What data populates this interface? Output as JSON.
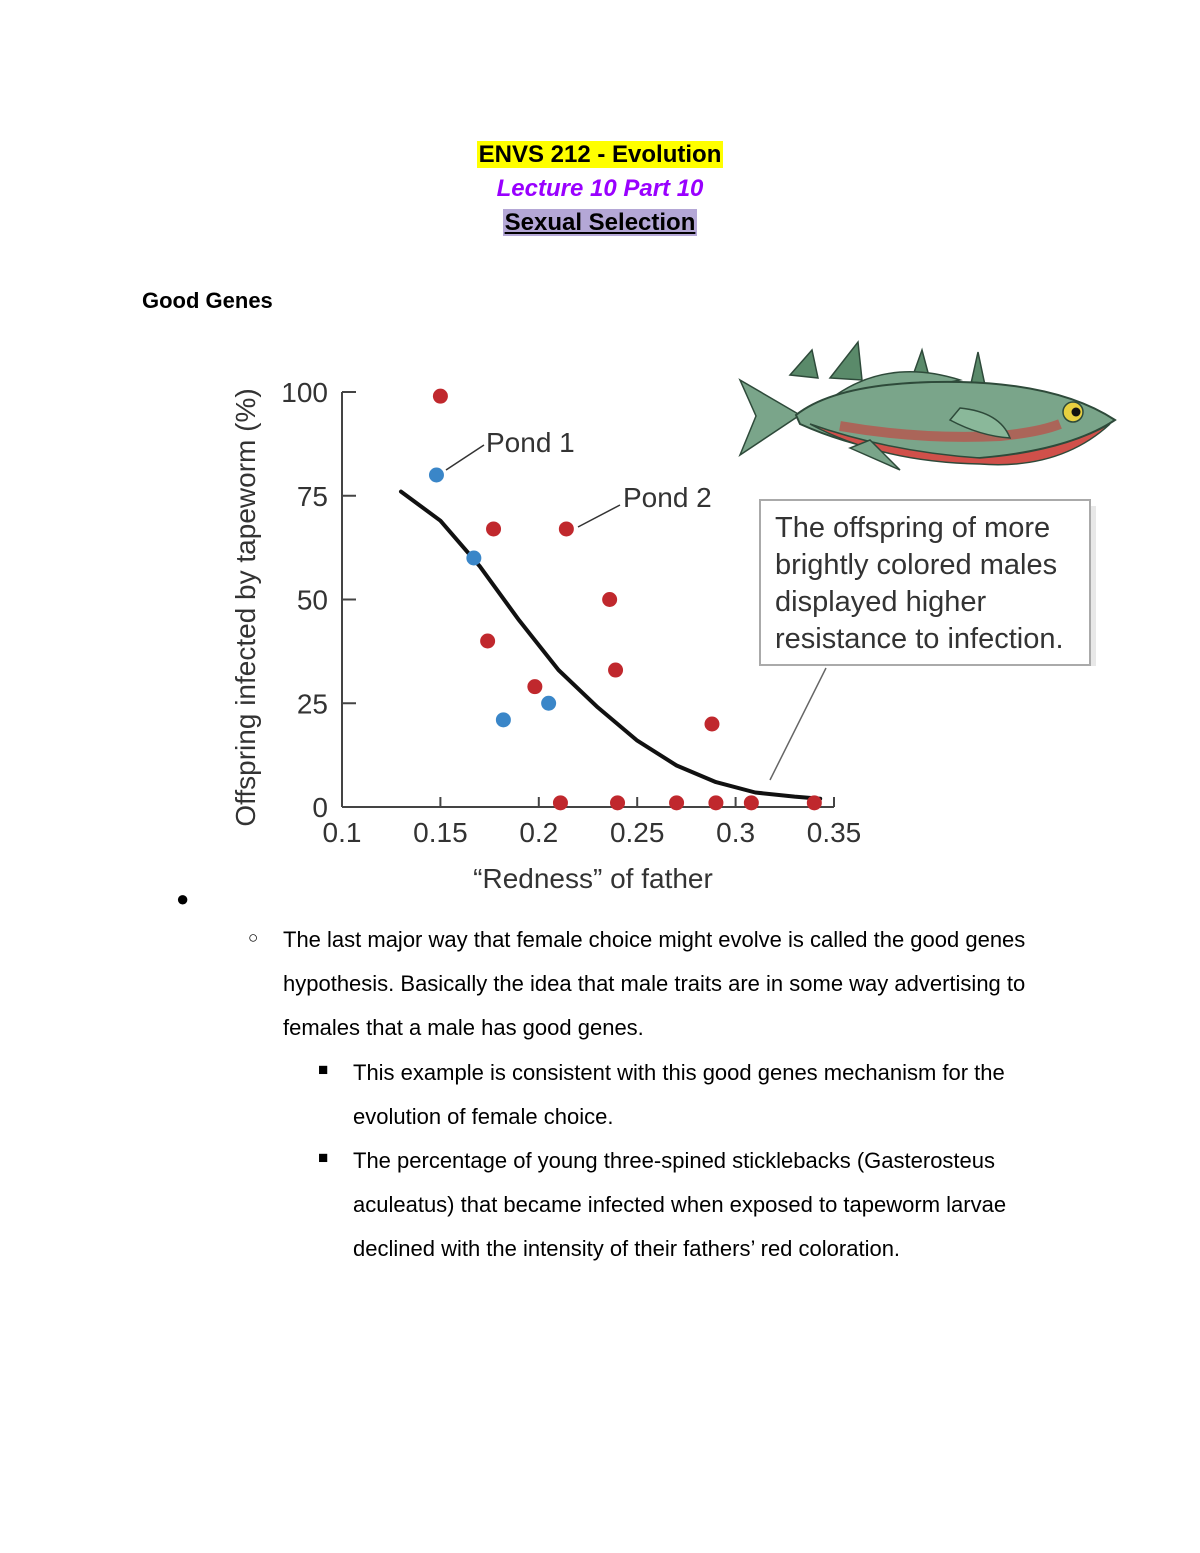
{
  "header": {
    "course_title": "ENVS 212 - Evolution",
    "lecture": "Lecture 10 Part 10",
    "topic": "Sexual Selection"
  },
  "section_heading": "Good Genes",
  "colors": {
    "highlight_yellow": "#ffff00",
    "lecture_purple": "#9900ff",
    "topic_highlight": "#b4a7d6",
    "pond1_blue": "#3a86c8",
    "pond2_red": "#c0282d"
  },
  "figure": {
    "illustration": "stickleback-fish",
    "callout_text": [
      "The offspring of more",
      "brightly colored males",
      "displayed higher",
      "resistance to infection."
    ]
  },
  "chart_data": {
    "type": "scatter",
    "xlabel": "“Redness” of father",
    "ylabel": "Offspring infected by tapeworm (%)",
    "xlim": [
      0.1,
      0.35
    ],
    "ylim": [
      0,
      100
    ],
    "xticks": [
      0.1,
      0.15,
      0.2,
      0.25,
      0.3,
      0.35
    ],
    "xtick_labels": [
      "0.1",
      "0.15",
      "0.2",
      "0.25",
      "0.3",
      "0.35"
    ],
    "yticks": [
      0,
      25,
      50,
      75,
      100
    ],
    "ytick_labels": [
      "0",
      "25",
      "50",
      "75",
      "100"
    ],
    "grid": false,
    "annotations": [
      "Pond 1",
      "Pond 2"
    ],
    "series": [
      {
        "name": "Pond 1",
        "color": "#3a86c8",
        "points": [
          [
            0.148,
            80
          ],
          [
            0.167,
            60
          ],
          [
            0.182,
            21
          ],
          [
            0.205,
            25
          ]
        ]
      },
      {
        "name": "Pond 2",
        "color": "#c0282d",
        "points": [
          [
            0.15,
            99
          ],
          [
            0.177,
            67
          ],
          [
            0.174,
            40
          ],
          [
            0.198,
            29
          ],
          [
            0.211,
            1
          ],
          [
            0.214,
            67
          ],
          [
            0.236,
            50
          ],
          [
            0.239,
            33
          ],
          [
            0.24,
            1
          ],
          [
            0.27,
            1
          ],
          [
            0.288,
            20
          ],
          [
            0.29,
            1
          ],
          [
            0.308,
            1
          ],
          [
            0.34,
            1
          ]
        ]
      }
    ],
    "trend_curve": [
      [
        0.13,
        76
      ],
      [
        0.15,
        69
      ],
      [
        0.17,
        58
      ],
      [
        0.19,
        45
      ],
      [
        0.21,
        33
      ],
      [
        0.23,
        24
      ],
      [
        0.25,
        16
      ],
      [
        0.27,
        10
      ],
      [
        0.29,
        6
      ],
      [
        0.31,
        3.5
      ],
      [
        0.33,
        2.5
      ],
      [
        0.343,
        2
      ]
    ]
  },
  "bullets": {
    "level1": "",
    "level2_marker": "○",
    "level2": "The last major way that female choice might evolve is called the good genes hypothesis.  Basically the idea that male traits are in some way advertising to females that a male has good genes.",
    "level3_marker": "■",
    "level3": [
      "This example is consistent with this good genes mechanism for the evolution of female choice.",
      "The percentage of young three-spined sticklebacks (Gasterosteus aculeatus) that became infected when exposed to tapeworm larvae declined with the intensity of their fathers’ red coloration."
    ]
  }
}
